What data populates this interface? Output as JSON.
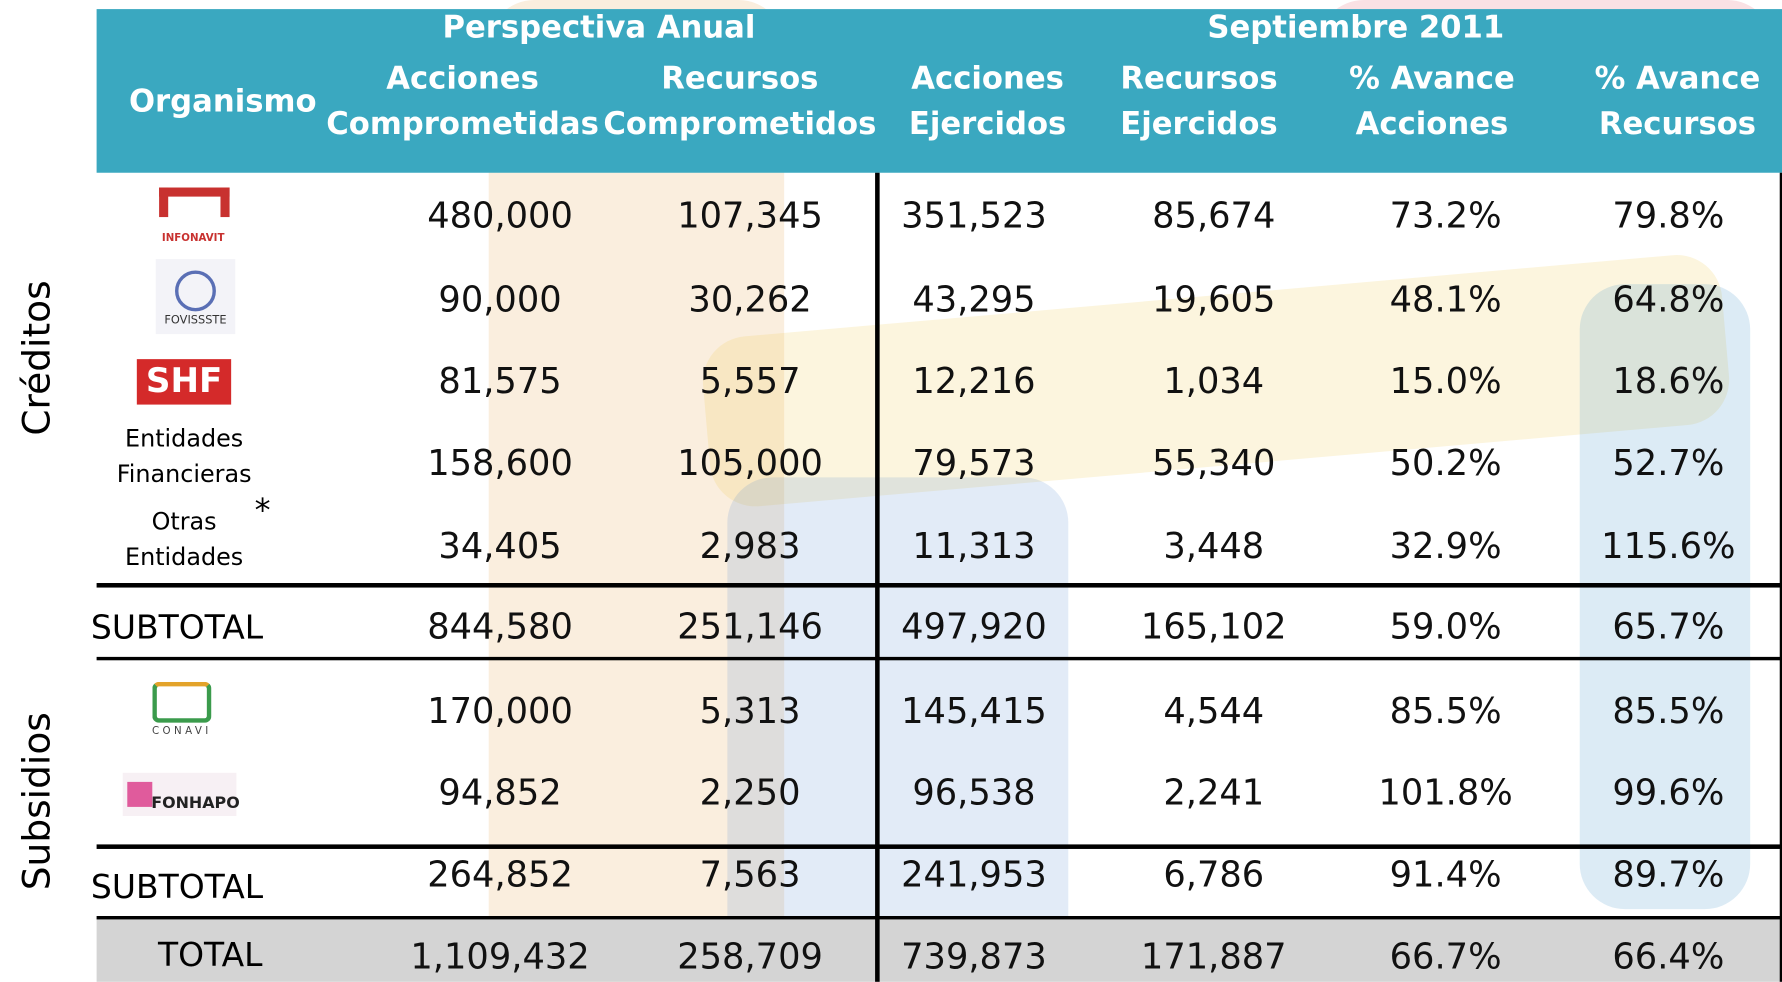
{
  "side_labels": [
    "Créditos",
    "Subsidios"
  ],
  "header": {
    "groups": [
      "Perspectiva Anual",
      "Septiembre 2011"
    ],
    "columns": [
      [
        "Organismo"
      ],
      [
        "Acciones",
        "Comprometidas"
      ],
      [
        "Recursos",
        "Comprometidos"
      ],
      [
        "Acciones",
        "Ejercidos"
      ],
      [
        "Recursos",
        "Ejercidos"
      ],
      [
        "% Avance",
        "Acciones"
      ],
      [
        "% Avance",
        "Recursos"
      ]
    ]
  },
  "rows": [
    {
      "organismo": [
        "INFONAVIT"
      ],
      "cells": [
        "480,000",
        "107,345",
        "351,523",
        "85,674",
        "73.2%",
        "79.8%"
      ]
    },
    {
      "organismo": [
        "FOVISSSTE"
      ],
      "cells": [
        "90,000",
        "30,262",
        "43,295",
        "19,605",
        "48.1%",
        "64.8%"
      ]
    },
    {
      "organismo": [
        "SHF"
      ],
      "cells": [
        "81,575",
        "5,557",
        "12,216",
        "1,034",
        "15.0%",
        "18.6%"
      ]
    },
    {
      "organismo": [
        "Entidades",
        "Financieras"
      ],
      "cells": [
        "158,600",
        "105,000",
        "79,573",
        "55,340",
        "50.2%",
        "52.7%"
      ]
    },
    {
      "organismo": [
        "Otras",
        "Entidades"
      ],
      "note": "*",
      "cells": [
        "34,405",
        "2,983",
        "11,313",
        "3,448",
        "32.9%",
        "115.6%"
      ]
    },
    {
      "organismo": [
        "SUBTOTAL"
      ],
      "cells": [
        "844,580",
        "251,146",
        "497,920",
        "165,102",
        "59.0%",
        "65.7%"
      ]
    },
    {
      "organismo": [
        "CONAVI"
      ],
      "cells": [
        "170,000",
        "5,313",
        "145,415",
        "4,544",
        "85.5%",
        "85.5%"
      ]
    },
    {
      "organismo": [
        "FONHAPO"
      ],
      "cells": [
        "94,852",
        "2,250",
        "96,538",
        "2,241",
        "101.8%",
        "99.6%"
      ]
    },
    {
      "organismo": [
        "SUBTOTAL"
      ],
      "cells": [
        "264,852",
        "7,563",
        "241,953",
        "6,786",
        "91.4%",
        "89.7%"
      ]
    },
    {
      "organismo": [
        "TOTAL"
      ],
      "cells": [
        "1,109,432",
        "258,709",
        "739,873",
        "171,887",
        "66.7%",
        "66.4%"
      ]
    }
  ]
}
